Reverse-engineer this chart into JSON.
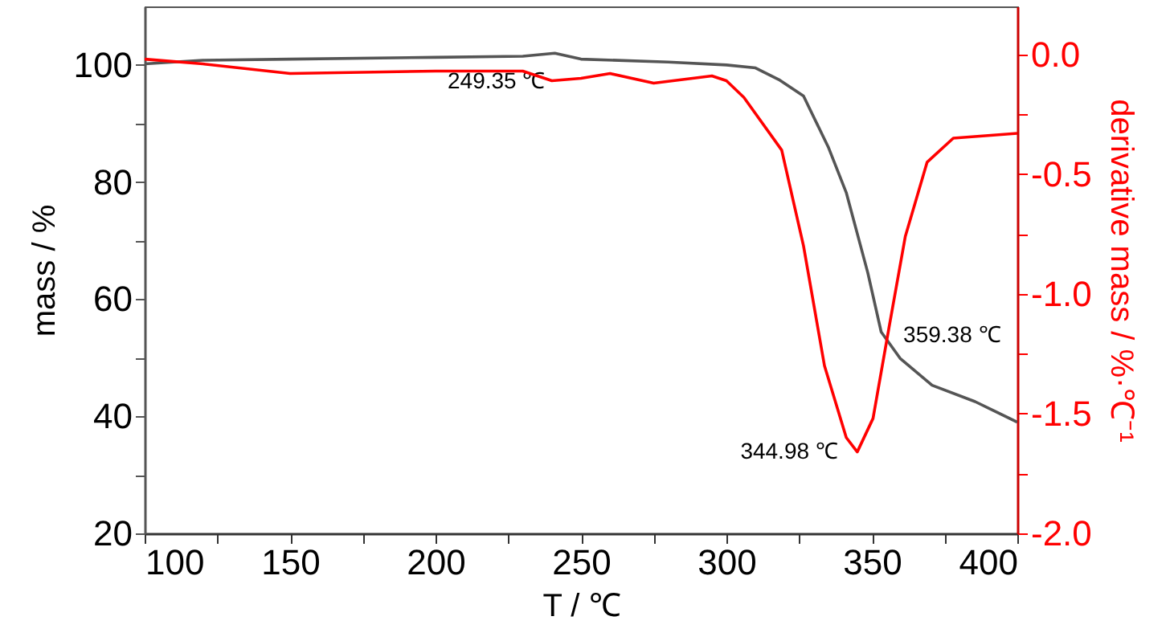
{
  "chart_data": {
    "type": "line",
    "xlabel": "T / ℃",
    "ylabel": "mass / %",
    "y2label": "derivative mass / %·℃⁻¹",
    "xlim": [
      100,
      400
    ],
    "xticks": [
      100,
      {
        "value": 125,
        "label": null
      },
      150,
      {
        "value": 175,
        "label": null
      },
      200,
      {
        "value": 225,
        "label": null
      },
      250,
      {
        "value": 275,
        "label": null
      },
      300,
      {
        "value": 325,
        "label": null
      },
      350,
      {
        "value": 375,
        "label": null
      },
      400
    ],
    "ylim": [
      20,
      110
    ],
    "yticks": [
      20,
      {
        "value": 30,
        "label": null
      },
      40,
      {
        "value": 50,
        "label": null
      },
      60,
      {
        "value": 70,
        "label": null
      },
      80,
      {
        "value": 90,
        "label": null
      },
      100
    ],
    "y2lim": [
      -2.0,
      0.2
    ],
    "y2ticks": [
      {
        "value": -2,
        "label": "-2.0"
      },
      {
        "value": -1.75,
        "label": null
      },
      -1.5,
      {
        "value": -1.25,
        "label": null
      },
      {
        "value": -1,
        "label": "-1.0"
      },
      {
        "value": -0.75,
        "label": null
      },
      -0.5,
      {
        "value": -0.25,
        "label": null
      },
      {
        "value": 0,
        "label": "0.0"
      }
    ],
    "grid": false,
    "series": [
      {
        "color": "#555555",
        "x": [
          100,
          120,
          150,
          200,
          230,
          241,
          250,
          280,
          300,
          310,
          318,
          326.5,
          335,
          341.2,
          348.6,
          353.2,
          359.7,
          370.7,
          385.5,
          400
        ],
        "values": [
          100.2,
          100.8,
          101,
          101.3,
          101.5,
          102,
          101,
          100.5,
          100,
          99.5,
          97.5,
          94.7,
          86,
          78.2,
          64.5,
          54.4,
          49.9,
          45.3,
          42.5,
          39
        ]
      },
      {
        "color": "#ff0000",
        "axis": "y2",
        "x": [
          100,
          120,
          150,
          200,
          230,
          240,
          250,
          260,
          275,
          295,
          300,
          306,
          319,
          326.5,
          333.7,
          341.2,
          344.98,
          350.4,
          355.9,
          361.5,
          369,
          378,
          400
        ],
        "values": [
          -0.02,
          -0.04,
          -0.08,
          -0.07,
          -0.07,
          -0.11,
          -0.1,
          -0.08,
          -0.12,
          -0.09,
          -0.11,
          -0.18,
          -0.4,
          -0.8,
          -1.3,
          -1.6,
          -1.66,
          -1.52,
          -1.14,
          -0.76,
          -0.45,
          -0.35,
          -0.33
        ]
      }
    ],
    "annotations": [
      {
        "text": "249.35 ℃",
        "x": 241,
        "y": 102
      },
      {
        "text": "359.38 ℃",
        "x": 359.7,
        "y": 49.9
      },
      {
        "text": "344.98 ℃",
        "x": 344.98,
        "y": 33.8
      }
    ]
  }
}
